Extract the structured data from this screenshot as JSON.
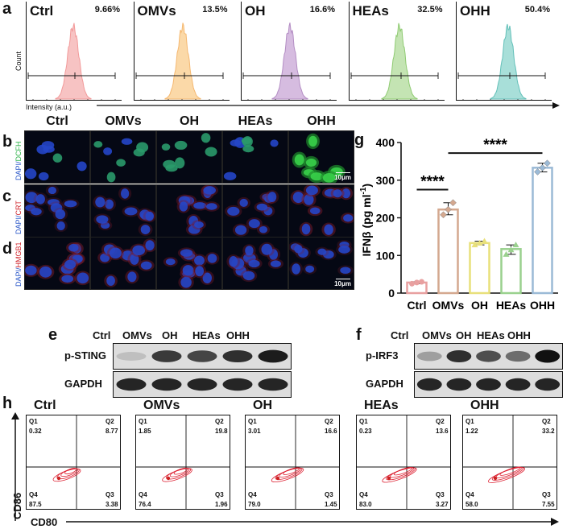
{
  "panels": {
    "a": "a",
    "b": "b",
    "c": "c",
    "d": "d",
    "e": "e",
    "f": "f",
    "g": "g",
    "h": "h"
  },
  "flow": {
    "ylabel": "Count",
    "xlabel": "Intensity (a.u.)",
    "groups": [
      {
        "name": "Ctrl",
        "pct": "9.66%",
        "color": "#f29a9a",
        "fill": "#f7c3c3"
      },
      {
        "name": "OMVs",
        "pct": "13.5%",
        "color": "#f5b870",
        "fill": "#fbd9a8"
      },
      {
        "name": "OH",
        "pct": "16.6%",
        "color": "#b48ec4",
        "fill": "#d6bce0"
      },
      {
        "name": "HEAs",
        "pct": "32.5%",
        "color": "#8fcb72",
        "fill": "#c4e4b3"
      },
      {
        "name": "OHH",
        "pct": "50.4%",
        "color": "#63c0b9",
        "fill": "#a8dfd9"
      }
    ]
  },
  "microscopy": {
    "columns": [
      "Ctrl",
      "OMVs",
      "OH",
      "HEAs",
      "OHH"
    ],
    "rows": [
      {
        "stain_a": "DAPI/",
        "stain_b": "DCFH",
        "color_b": "#2fb34a"
      },
      {
        "stain_a": "DAPI/",
        "stain_b": "CRT",
        "color_b": "#d0232a"
      },
      {
        "stain_a": "DAPI/",
        "stain_b": "HMGB1",
        "color_b": "#d0232a"
      }
    ],
    "scalebar": "10μm"
  },
  "western": {
    "e": {
      "columns": [
        "Ctrl",
        "OMVs",
        "OH",
        "HEAs",
        "OHH"
      ],
      "rows": [
        "p-STING",
        "GAPDH"
      ]
    },
    "f": {
      "columns": [
        "Ctrl",
        "OMVs",
        "OH",
        "HEAs",
        "OHH"
      ],
      "rows": [
        "p-IRF3",
        "GAPDH"
      ]
    }
  },
  "chart_data": {
    "type": "bar",
    "title": "",
    "ylabel": "IFNβ (pg ml⁻¹)",
    "ylabel_main": "IFNβ (pg ml",
    "ylabel_sup": "-1",
    "ylabel_close": ")",
    "xlabel": "",
    "categories": [
      "Ctrl",
      "OMVs",
      "OH",
      "HEAs",
      "OHH"
    ],
    "values": [
      28,
      222,
      133,
      117,
      333
    ],
    "points": [
      [
        25,
        28,
        30
      ],
      [
        208,
        222,
        240
      ],
      [
        128,
        133,
        138
      ],
      [
        103,
        115,
        128
      ],
      [
        322,
        333,
        345
      ]
    ],
    "colors": [
      "#e8a0a0",
      "#d4a88f",
      "#e8e07a",
      "#9ad18e",
      "#9bbad6"
    ],
    "ylim": [
      0,
      400
    ],
    "yticks": [
      0,
      100,
      200,
      300,
      400
    ],
    "significance": [
      {
        "from": 0,
        "to": 1,
        "label": "****"
      },
      {
        "from": 1,
        "to": 4,
        "label": "****"
      }
    ]
  },
  "facs": {
    "ylabel": "CD86",
    "xlabel": "CD80",
    "groups": [
      {
        "name": "Ctrl",
        "q1": "0.32",
        "q2": "8.77",
        "q3": "3.38",
        "q4": "87.5"
      },
      {
        "name": "OMVs",
        "q1": "1.85",
        "q2": "19.8",
        "q3": "1.96",
        "q4": "76.4"
      },
      {
        "name": "OH",
        "q1": "3.01",
        "q2": "16.6",
        "q3": "1.45",
        "q4": "79.0"
      },
      {
        "name": "HEAs",
        "q1": "0.23",
        "q2": "13.6",
        "q3": "3.27",
        "q4": "83.0"
      },
      {
        "name": "OHH",
        "q1": "1.22",
        "q2": "33.2",
        "q3": "7.55",
        "q4": "58.0"
      }
    ],
    "quadrant_labels": {
      "q1": "Q1",
      "q2": "Q2",
      "q3": "Q3",
      "q4": "Q4"
    }
  }
}
